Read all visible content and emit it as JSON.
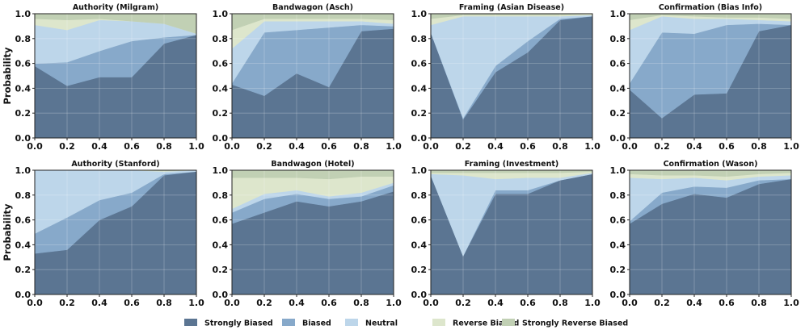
{
  "figure": {
    "ylabel": "Probability",
    "legend": {
      "placement": "bottom-center",
      "items": [
        {
          "label": "Strongly Biased",
          "color": "#5b7592"
        },
        {
          "label": "Biased",
          "color": "#87a9ca"
        },
        {
          "label": "Neutral",
          "color": "#bdd6ea"
        },
        {
          "label": "Reverse Biased",
          "color": "#dde6cc"
        },
        {
          "label": "Strongly Reverse Biased",
          "color": "#c1d0b4"
        }
      ]
    }
  },
  "chart_data": [
    {
      "type": "area",
      "stacked": true,
      "title": "Authority (Milgram)",
      "x": [
        0.0,
        0.2,
        0.4,
        0.6,
        0.8,
        1.0
      ],
      "xlim": [
        0,
        1
      ],
      "ylim": [
        0,
        1
      ],
      "xticks": [
        "0.0",
        "0.2",
        "0.4",
        "0.6",
        "0.8",
        "1.0"
      ],
      "yticks": [
        "0.0",
        "0.2",
        "0.4",
        "0.6",
        "0.8",
        "1.0"
      ],
      "grid": true,
      "series": [
        {
          "name": "Strongly Biased",
          "values": [
            0.58,
            0.42,
            0.49,
            0.49,
            0.76,
            0.83
          ]
        },
        {
          "name": "Biased",
          "values": [
            0.02,
            0.19,
            0.21,
            0.29,
            0.05,
            0.0
          ]
        },
        {
          "name": "Neutral",
          "values": [
            0.31,
            0.26,
            0.25,
            0.16,
            0.11,
            0.01
          ]
        },
        {
          "name": "Reverse Biased",
          "values": [
            0.05,
            0.08,
            0.01,
            0.0,
            0.0,
            0.0
          ]
        },
        {
          "name": "Strongly Reverse Biased",
          "values": [
            0.04,
            0.05,
            0.04,
            0.06,
            0.08,
            0.16
          ]
        }
      ]
    },
    {
      "type": "area",
      "stacked": true,
      "title": "Bandwagon (Asch)",
      "x": [
        0.0,
        0.2,
        0.4,
        0.6,
        0.8,
        1.0
      ],
      "xlim": [
        0,
        1
      ],
      "ylim": [
        0,
        1
      ],
      "xticks": [
        "0.0",
        "0.2",
        "0.4",
        "0.6",
        "0.8",
        "1.0"
      ],
      "yticks": [
        "0.0",
        "0.2",
        "0.4",
        "0.6",
        "0.8",
        "1.0"
      ],
      "grid": true,
      "series": [
        {
          "name": "Strongly Biased",
          "values": [
            0.43,
            0.34,
            0.52,
            0.41,
            0.86,
            0.88
          ]
        },
        {
          "name": "Biased",
          "values": [
            0.01,
            0.51,
            0.35,
            0.48,
            0.05,
            0.02
          ]
        },
        {
          "name": "Neutral",
          "values": [
            0.28,
            0.09,
            0.07,
            0.05,
            0.03,
            0.02
          ]
        },
        {
          "name": "Reverse Biased",
          "values": [
            0.15,
            0.02,
            0.02,
            0.02,
            0.02,
            0.03
          ]
        },
        {
          "name": "Strongly Reverse Biased",
          "values": [
            0.13,
            0.04,
            0.04,
            0.04,
            0.04,
            0.05
          ]
        }
      ]
    },
    {
      "type": "area",
      "stacked": true,
      "title": "Framing (Asian Disease)",
      "x": [
        0.0,
        0.2,
        0.4,
        0.6,
        0.8,
        1.0
      ],
      "xlim": [
        0,
        1
      ],
      "ylim": [
        0,
        1
      ],
      "xticks": [
        "0.0",
        "0.2",
        "0.4",
        "0.6",
        "0.8",
        "1.0"
      ],
      "yticks": [
        "0.0",
        "0.2",
        "0.4",
        "0.6",
        "0.8",
        "1.0"
      ],
      "grid": true,
      "series": [
        {
          "name": "Strongly Biased",
          "values": [
            0.85,
            0.15,
            0.53,
            0.69,
            0.95,
            0.98
          ]
        },
        {
          "name": "Biased",
          "values": [
            0.0,
            0.01,
            0.05,
            0.09,
            0.01,
            0.0
          ]
        },
        {
          "name": "Neutral",
          "values": [
            0.06,
            0.82,
            0.4,
            0.2,
            0.02,
            0.01
          ]
        },
        {
          "name": "Reverse Biased",
          "values": [
            0.05,
            0.01,
            0.01,
            0.01,
            0.01,
            0.01
          ]
        },
        {
          "name": "Strongly Reverse Biased",
          "values": [
            0.04,
            0.01,
            0.01,
            0.01,
            0.01,
            0.0
          ]
        }
      ]
    },
    {
      "type": "area",
      "stacked": true,
      "title": "Confirmation (Bias Info)",
      "x": [
        0.0,
        0.2,
        0.4,
        0.6,
        0.8,
        1.0
      ],
      "xlim": [
        0,
        1
      ],
      "ylim": [
        0,
        1
      ],
      "xticks": [
        "0.0",
        "0.2",
        "0.4",
        "0.6",
        "0.8",
        "1.0"
      ],
      "yticks": [
        "0.0",
        "0.2",
        "0.4",
        "0.6",
        "0.8",
        "1.0"
      ],
      "grid": true,
      "series": [
        {
          "name": "Strongly Biased",
          "values": [
            0.39,
            0.16,
            0.35,
            0.36,
            0.86,
            0.91
          ]
        },
        {
          "name": "Biased",
          "values": [
            0.05,
            0.69,
            0.49,
            0.55,
            0.06,
            0.0
          ]
        },
        {
          "name": "Neutral",
          "values": [
            0.43,
            0.13,
            0.12,
            0.05,
            0.03,
            0.03
          ]
        },
        {
          "name": "Reverse Biased",
          "values": [
            0.08,
            0.01,
            0.02,
            0.01,
            0.02,
            0.02
          ]
        },
        {
          "name": "Strongly Reverse Biased",
          "values": [
            0.05,
            0.01,
            0.02,
            0.03,
            0.03,
            0.04
          ]
        }
      ]
    },
    {
      "type": "area",
      "stacked": true,
      "title": "Authority (Stanford)",
      "x": [
        0.0,
        0.2,
        0.4,
        0.6,
        0.8,
        1.0
      ],
      "xlim": [
        0,
        1
      ],
      "ylim": [
        0,
        1
      ],
      "xticks": [
        "0.0",
        "0.2",
        "0.4",
        "0.6",
        "0.8",
        "1.0"
      ],
      "yticks": [
        "0.0",
        "0.2",
        "0.4",
        "0.6",
        "0.8",
        "1.0"
      ],
      "grid": true,
      "series": [
        {
          "name": "Strongly Biased",
          "values": [
            0.33,
            0.36,
            0.6,
            0.71,
            0.96,
            0.99
          ]
        },
        {
          "name": "Biased",
          "values": [
            0.16,
            0.26,
            0.16,
            0.11,
            0.01,
            0.0
          ]
        },
        {
          "name": "Neutral",
          "values": [
            0.51,
            0.38,
            0.24,
            0.18,
            0.02,
            0.01
          ]
        },
        {
          "name": "Reverse Biased",
          "values": [
            0.0,
            0.0,
            0.0,
            0.0,
            0.005,
            0.0
          ]
        },
        {
          "name": "Strongly Reverse Biased",
          "values": [
            0.0,
            0.0,
            0.0,
            0.0,
            0.005,
            0.0
          ]
        }
      ]
    },
    {
      "type": "area",
      "stacked": true,
      "title": "Bandwagon (Hotel)",
      "x": [
        0.0,
        0.2,
        0.4,
        0.6,
        0.8,
        1.0
      ],
      "xlim": [
        0,
        1
      ],
      "ylim": [
        0,
        1
      ],
      "xticks": [
        "0.0",
        "0.2",
        "0.4",
        "0.6",
        "0.8",
        "1.0"
      ],
      "yticks": [
        "0.0",
        "0.2",
        "0.4",
        "0.6",
        "0.8",
        "1.0"
      ],
      "grid": true,
      "series": [
        {
          "name": "Strongly Biased",
          "values": [
            0.57,
            0.66,
            0.75,
            0.71,
            0.75,
            0.83
          ]
        },
        {
          "name": "Biased",
          "values": [
            0.09,
            0.11,
            0.06,
            0.06,
            0.04,
            0.05
          ]
        },
        {
          "name": "Neutral",
          "values": [
            0.03,
            0.04,
            0.03,
            0.02,
            0.03,
            0.02
          ]
        },
        {
          "name": "Reverse Biased",
          "values": [
            0.25,
            0.13,
            0.1,
            0.14,
            0.13,
            0.05
          ]
        },
        {
          "name": "Strongly Reverse Biased",
          "values": [
            0.06,
            0.06,
            0.06,
            0.07,
            0.05,
            0.05
          ]
        }
      ]
    },
    {
      "type": "area",
      "stacked": true,
      "title": "Framing (Investment)",
      "x": [
        0.0,
        0.2,
        0.4,
        0.6,
        0.8,
        1.0
      ],
      "xlim": [
        0,
        1
      ],
      "ylim": [
        0,
        1
      ],
      "xticks": [
        "0.0",
        "0.2",
        "0.4",
        "0.6",
        "0.8",
        "1.0"
      ],
      "yticks": [
        "0.0",
        "0.2",
        "0.4",
        "0.6",
        "0.8",
        "1.0"
      ],
      "grid": true,
      "series": [
        {
          "name": "Strongly Biased",
          "values": [
            0.96,
            0.31,
            0.81,
            0.81,
            0.92,
            0.97
          ]
        },
        {
          "name": "Biased",
          "values": [
            0.0,
            0.0,
            0.03,
            0.03,
            0.0,
            0.0
          ]
        },
        {
          "name": "Neutral",
          "values": [
            0.01,
            0.65,
            0.09,
            0.1,
            0.02,
            0.01
          ]
        },
        {
          "name": "Reverse Biased",
          "values": [
            0.01,
            0.02,
            0.05,
            0.04,
            0.04,
            0.01
          ]
        },
        {
          "name": "Strongly Reverse Biased",
          "values": [
            0.02,
            0.02,
            0.02,
            0.02,
            0.02,
            0.01
          ]
        }
      ]
    },
    {
      "type": "area",
      "stacked": true,
      "title": "Confirmation (Wason)",
      "x": [
        0.0,
        0.2,
        0.4,
        0.6,
        0.8,
        1.0
      ],
      "xlim": [
        0,
        1
      ],
      "ylim": [
        0,
        1
      ],
      "xticks": [
        "0.0",
        "0.2",
        "0.4",
        "0.6",
        "0.8",
        "1.0"
      ],
      "yticks": [
        "0.0",
        "0.2",
        "0.4",
        "0.6",
        "0.8",
        "1.0"
      ],
      "grid": true,
      "series": [
        {
          "name": "Strongly Biased",
          "values": [
            0.57,
            0.73,
            0.81,
            0.78,
            0.89,
            0.93
          ]
        },
        {
          "name": "Biased",
          "values": [
            0.02,
            0.09,
            0.06,
            0.08,
            0.03,
            0.0
          ]
        },
        {
          "name": "Neutral",
          "values": [
            0.35,
            0.11,
            0.07,
            0.06,
            0.03,
            0.03
          ]
        },
        {
          "name": "Reverse Biased",
          "values": [
            0.03,
            0.03,
            0.02,
            0.03,
            0.02,
            0.02
          ]
        },
        {
          "name": "Strongly Reverse Biased",
          "values": [
            0.03,
            0.04,
            0.04,
            0.05,
            0.03,
            0.02
          ]
        }
      ]
    }
  ]
}
